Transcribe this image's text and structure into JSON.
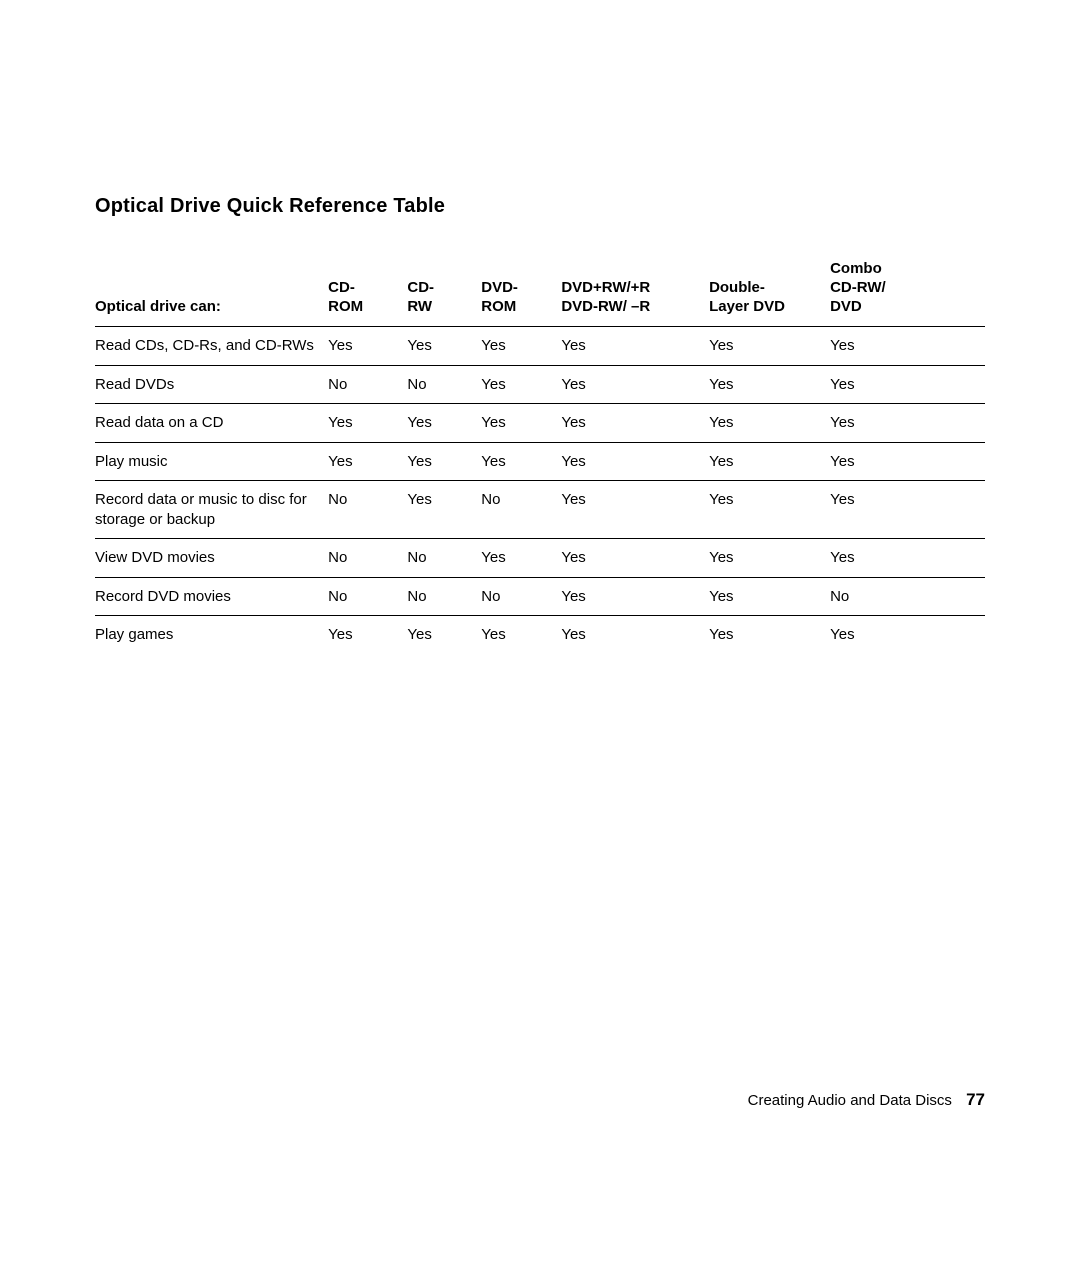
{
  "title": "Optical Drive Quick Reference Table",
  "table": {
    "columns": [
      "Optical drive can:",
      "CD-\nROM",
      "CD-\nRW",
      "DVD-\nROM",
      "DVD+RW/+R\nDVD-RW/ –R",
      "Double-\nLayer DVD",
      "Combo\nCD-RW/\nDVD"
    ],
    "rows": [
      [
        "Read CDs, CD-Rs, and CD-RWs",
        "Yes",
        "Yes",
        "Yes",
        "Yes",
        "Yes",
        "Yes"
      ],
      [
        "Read DVDs",
        "No",
        "No",
        "Yes",
        "Yes",
        "Yes",
        "Yes"
      ],
      [
        "Read data on a CD",
        "Yes",
        "Yes",
        "Yes",
        "Yes",
        "Yes",
        "Yes"
      ],
      [
        "Play music",
        "Yes",
        "Yes",
        "Yes",
        "Yes",
        "Yes",
        "Yes"
      ],
      [
        "Record data or music to disc for storage or backup",
        "No",
        "Yes",
        "No",
        "Yes",
        "Yes",
        "Yes"
      ],
      [
        "View DVD movies",
        "No",
        "No",
        "Yes",
        "Yes",
        "Yes",
        "Yes"
      ],
      [
        "Record DVD movies",
        "No",
        "No",
        "No",
        "Yes",
        "Yes",
        "No"
      ],
      [
        "Play games",
        "Yes",
        "Yes",
        "Yes",
        "Yes",
        "Yes",
        "Yes"
      ]
    ],
    "column_widths_pct": [
      26.2,
      8.9,
      8.3,
      9.0,
      16.6,
      13.6,
      17.4
    ],
    "border_color": "#000000",
    "header_fontsize": 15,
    "body_fontsize": 15,
    "header_fontweight": "bold"
  },
  "footer": {
    "section": "Creating Audio and Data Discs",
    "page": "77"
  },
  "colors": {
    "background": "#ffffff",
    "text": "#000000"
  },
  "typography": {
    "title_fontsize": 20,
    "title_fontweight": "bold",
    "footer_fontsize": 15,
    "pagenum_fontsize": 17
  }
}
